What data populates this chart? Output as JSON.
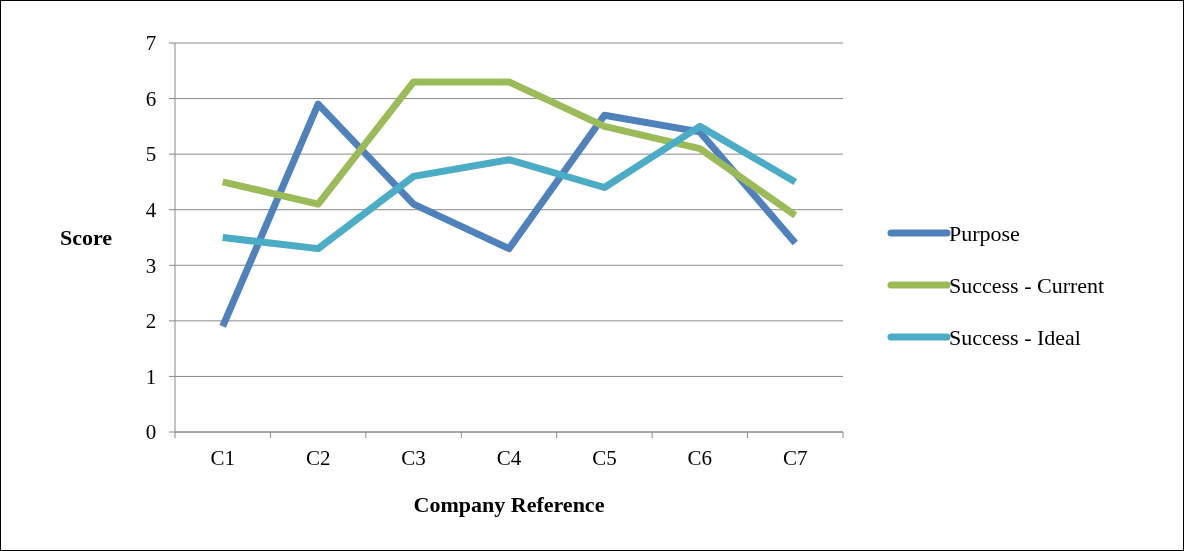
{
  "chart_data": {
    "type": "line",
    "xlabel": "Company Reference",
    "ylabel": "Score",
    "categories": [
      "C1",
      "C2",
      "C3",
      "C4",
      "C5",
      "C6",
      "C7"
    ],
    "series": [
      {
        "name": "Purpose",
        "color": "#4f81bd",
        "values": [
          1.9,
          5.9,
          4.1,
          3.3,
          5.7,
          5.4,
          3.4
        ]
      },
      {
        "name": "Success - Current",
        "color": "#9bbb59",
        "values": [
          4.5,
          4.1,
          6.3,
          6.3,
          5.5,
          5.1,
          3.9
        ]
      },
      {
        "name": "Success - Ideal",
        "color": "#4bacc6",
        "values": [
          3.5,
          3.3,
          4.6,
          4.9,
          4.4,
          5.5,
          4.5
        ]
      }
    ],
    "ylim": [
      0,
      7
    ],
    "yticks": [
      0,
      1,
      2,
      3,
      4,
      5,
      6,
      7
    ],
    "grid": "y",
    "legend": "right",
    "marker": "none",
    "line_style": "solid"
  }
}
